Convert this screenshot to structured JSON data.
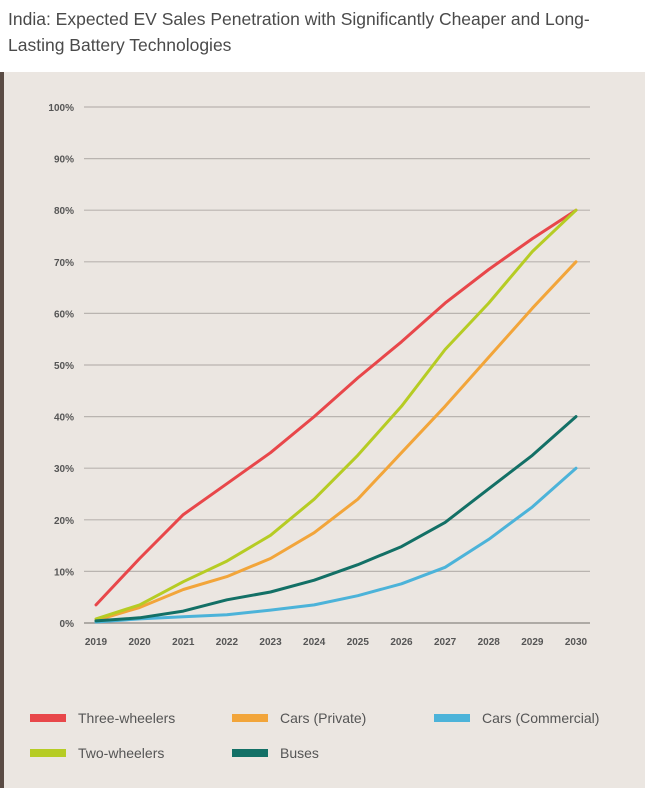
{
  "title": "India: Expected EV Sales Penetration with Significantly Cheaper and Long-Lasting Battery Technologies",
  "chart_data": {
    "type": "line",
    "title": "India: Expected EV Sales Penetration with Significantly Cheaper and Long-Lasting Battery Technologies",
    "xlabel": "",
    "ylabel": "",
    "ylim": [
      0,
      100
    ],
    "y_ticks": [
      "0%",
      "10%",
      "20%",
      "30%",
      "40%",
      "50%",
      "60%",
      "70%",
      "80%",
      "90%",
      "100%"
    ],
    "categories": [
      "2019",
      "2020",
      "2021",
      "2022",
      "2023",
      "2024",
      "2025",
      "2026",
      "2027",
      "2028",
      "2029",
      "2030"
    ],
    "grid": "horizontal",
    "legend_position": "bottom",
    "series": [
      {
        "name": "Three-wheelers",
        "color": "#e8474a",
        "values": [
          3.5,
          12.5,
          21,
          27,
          33,
          40,
          47.5,
          54.5,
          62,
          68.5,
          74.5,
          80
        ]
      },
      {
        "name": "Cars (Private)",
        "color": "#f2a53a",
        "values": [
          0.5,
          3,
          6.5,
          9,
          12.5,
          17.5,
          24,
          33,
          42,
          51.5,
          61,
          70
        ]
      },
      {
        "name": "Cars (Commercial)",
        "color": "#4cb3d9",
        "values": [
          0.2,
          0.8,
          1.2,
          1.6,
          2.5,
          3.5,
          5.3,
          7.6,
          10.8,
          16.2,
          22.5,
          30
        ]
      },
      {
        "name": "Two-wheelers",
        "color": "#b6cc24",
        "values": [
          0.8,
          3.5,
          8,
          12,
          17,
          24,
          32.5,
          42,
          53,
          62,
          72,
          80
        ]
      },
      {
        "name": "Buses",
        "color": "#137066",
        "values": [
          0.4,
          1,
          2.3,
          4.5,
          6,
          8.3,
          11.3,
          14.8,
          19.5,
          26,
          32.5,
          40
        ]
      }
    ]
  },
  "legend": [
    {
      "label": "Three-wheelers",
      "color": "#e8474a"
    },
    {
      "label": "Cars (Private)",
      "color": "#f2a53a"
    },
    {
      "label": "Cars (Commercial)",
      "color": "#4cb3d9"
    },
    {
      "label": "Two-wheelers",
      "color": "#b6cc24"
    },
    {
      "label": "Buses",
      "color": "#137066"
    }
  ]
}
